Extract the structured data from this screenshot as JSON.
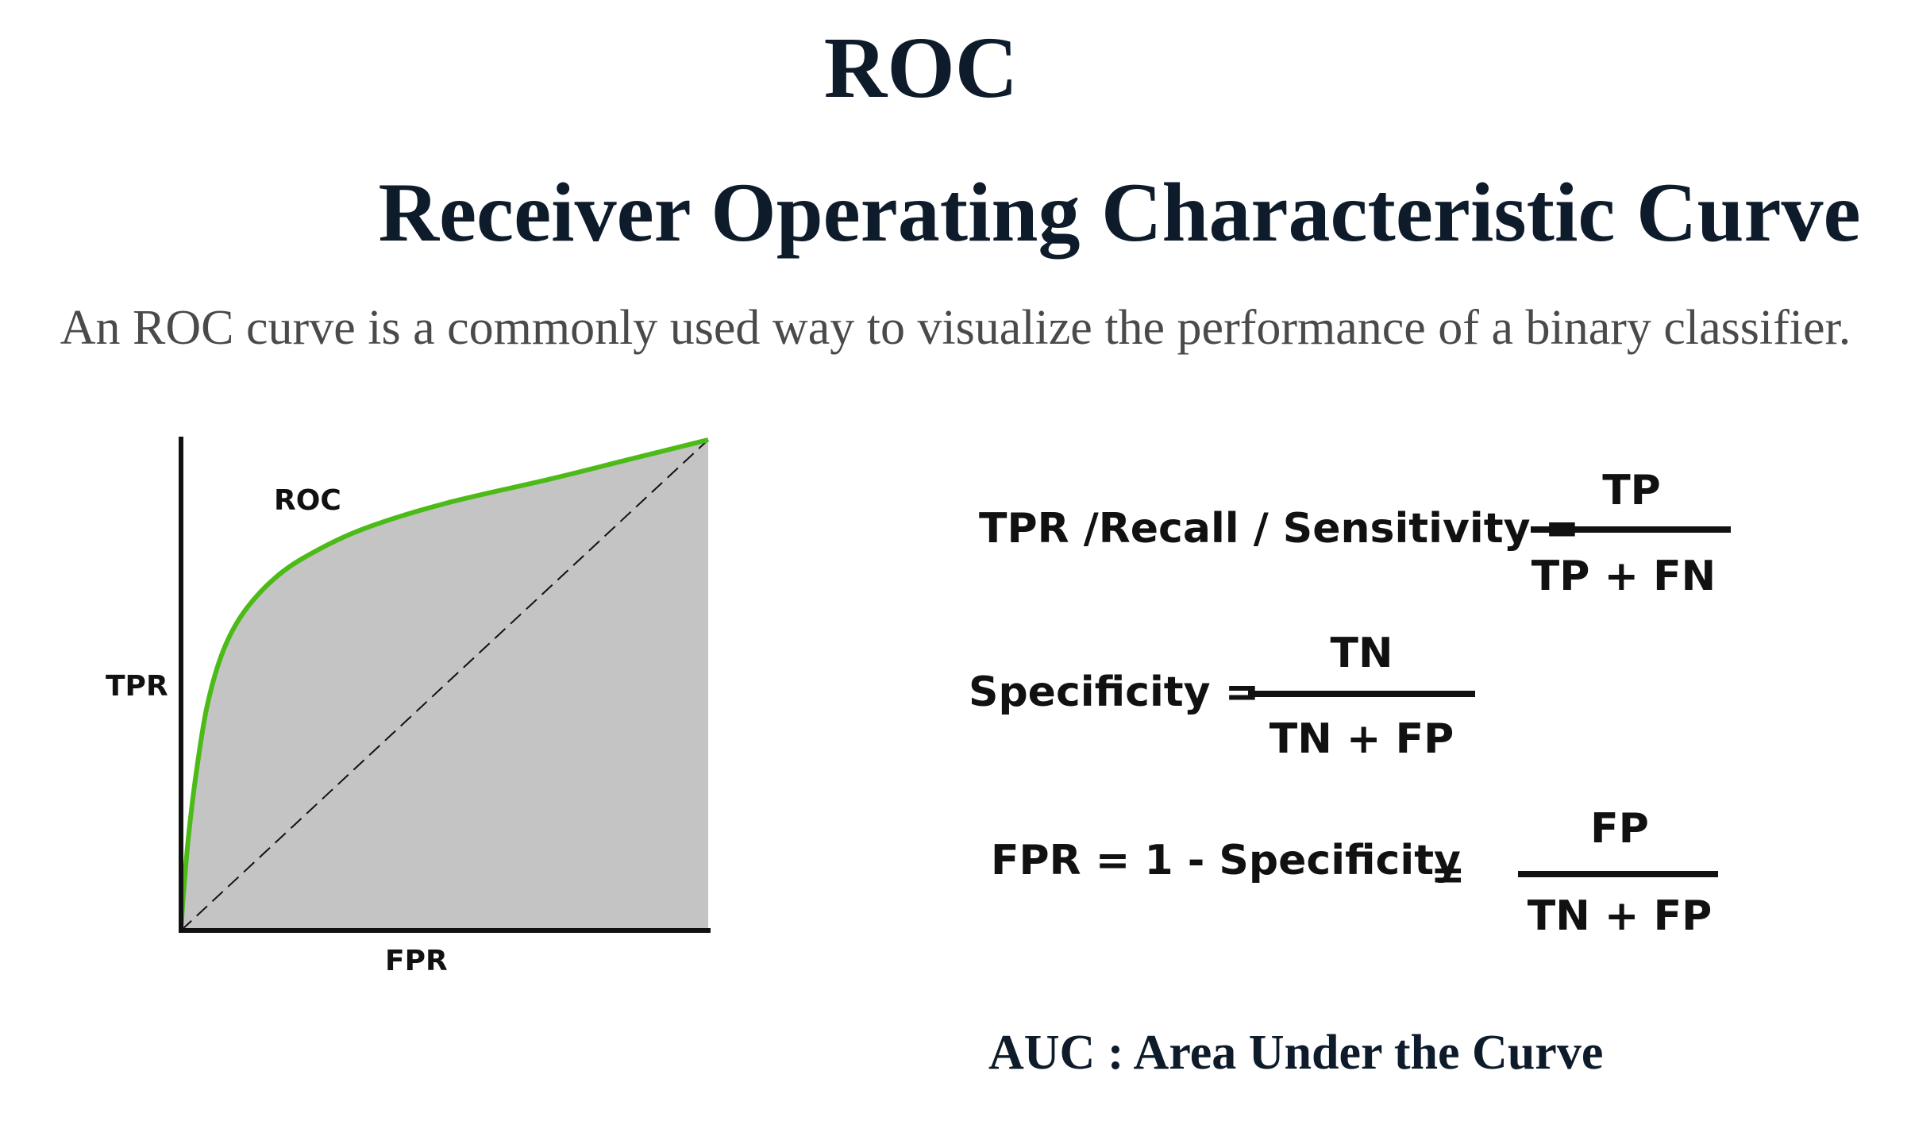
{
  "header": {
    "title": "ROC",
    "subtitle_title": "Receiver Operating Characteristic Curve",
    "description": "An ROC curve is a commonly used way to visualize the performance of a binary classifier."
  },
  "diagram": {
    "curve_label": "ROC",
    "y_label": "TPR",
    "x_label": "FPR",
    "curve_color": "#4cbb17",
    "fill_color": "#c4c4c4",
    "curve_points": [
      [
        0,
        0
      ],
      [
        0.005,
        0.08
      ],
      [
        0.015,
        0.2
      ],
      [
        0.03,
        0.33
      ],
      [
        0.05,
        0.46
      ],
      [
        0.08,
        0.57
      ],
      [
        0.12,
        0.65
      ],
      [
        0.18,
        0.72
      ],
      [
        0.25,
        0.77
      ],
      [
        0.35,
        0.82
      ],
      [
        0.5,
        0.87
      ],
      [
        0.7,
        0.92
      ],
      [
        0.85,
        0.96
      ],
      [
        1,
        1
      ]
    ]
  },
  "formulas": [
    {
      "lhs": "TPR /Recall / Sensitivity =",
      "numerator": "TP",
      "denominator": "TP + FN"
    },
    {
      "lhs": "Specificity =",
      "numerator": "TN",
      "denominator": "TN + FP"
    },
    {
      "lhs": "FPR = 1 - Specificity",
      "eq": "=",
      "numerator": "FP",
      "denominator": "TN + FP"
    }
  ],
  "footer": {
    "auc": "AUC : Area Under the Curve"
  }
}
